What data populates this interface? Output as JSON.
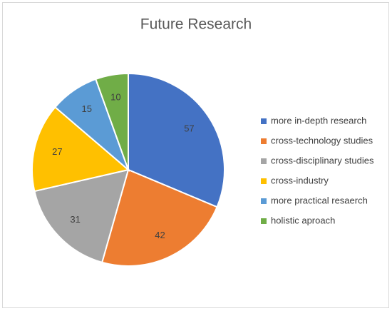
{
  "chart_data": {
    "type": "pie",
    "title": "Future Research",
    "categories": [
      "more in-depth research",
      "cross-technology studies",
      "cross-disciplinary studies",
      "cross-industry",
      "more practical resaerch",
      "holistic aproach"
    ],
    "values": [
      57,
      42,
      31,
      27,
      15,
      10
    ],
    "colors": [
      "#4472c4",
      "#ed7d31",
      "#a5a5a5",
      "#ffc000",
      "#5b9bd5",
      "#70ad47"
    ],
    "legend": "right"
  }
}
